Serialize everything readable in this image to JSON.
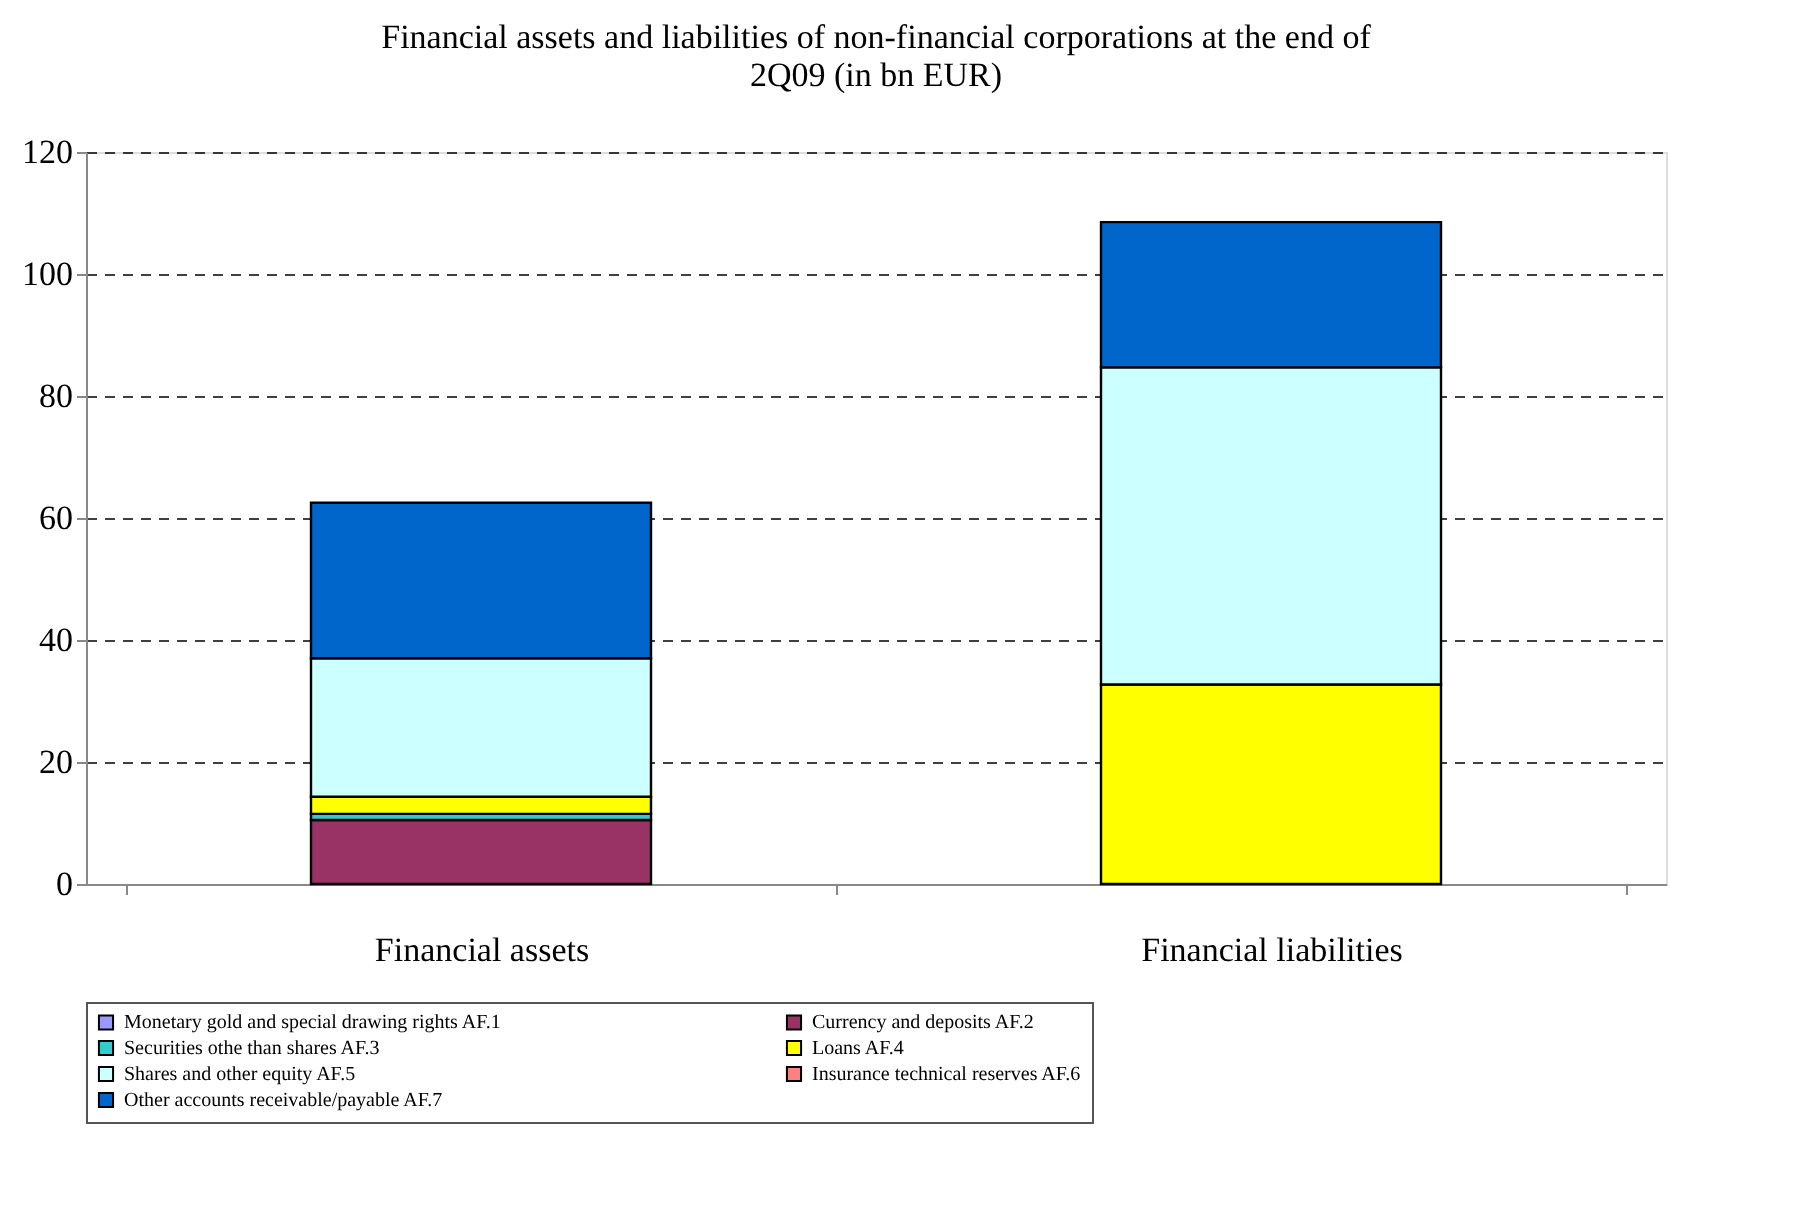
{
  "chart_data": {
    "type": "bar",
    "stacked": true,
    "title": [
      "Financial assets and liabilities of non-financial corporations at the end of",
      "2Q09 (in bn EUR)"
    ],
    "categories": [
      "Financial assets",
      "Financial liabilities"
    ],
    "series": [
      {
        "name": "Monetary gold and special drawing rights AF.1",
        "color": "#9999ff",
        "values": [
          null,
          null
        ]
      },
      {
        "name": "Currency and deposits AF.2",
        "color": "#993366",
        "values": [
          10.5,
          null
        ]
      },
      {
        "name": "Securities othe than shares AF.3",
        "color": "#33cccc",
        "values": [
          1.0,
          null
        ]
      },
      {
        "name": "Loans AF.4",
        "color": "#ffff00",
        "values": [
          2.8,
          32.7
        ]
      },
      {
        "name": "Shares and other equity  AF.5",
        "color": "#ccffff",
        "values": [
          22.7,
          52.0
        ]
      },
      {
        "name": "Insurance technical reserves AF.6",
        "color": "#ff8080",
        "values": [
          null,
          null
        ]
      },
      {
        "name": "Other accounts receivable/payable AF.7",
        "color": "#0066cc",
        "values": [
          25.5,
          23.8
        ]
      }
    ],
    "ylim": [
      0,
      120
    ],
    "yticks": [
      0,
      20,
      40,
      60,
      80,
      100,
      120
    ],
    "grid": "y",
    "legend": "bottom"
  }
}
